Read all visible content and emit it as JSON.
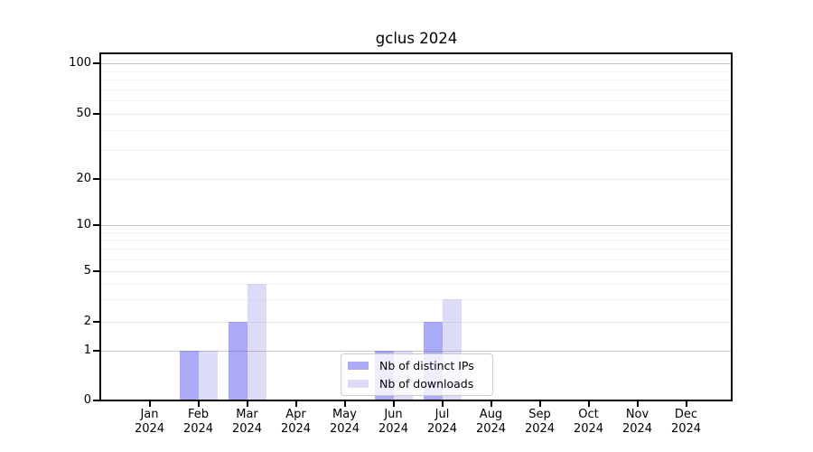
{
  "title": "gclus 2024",
  "chart_data": {
    "type": "bar",
    "title": "gclus 2024",
    "categories": [
      "Jan",
      "Feb",
      "Mar",
      "Apr",
      "May",
      "Jun",
      "Jul",
      "Aug",
      "Sep",
      "Oct",
      "Nov",
      "Dec"
    ],
    "category_year_line": "2024",
    "series": [
      {
        "name": "Nb of distinct IPs",
        "values": [
          0,
          1,
          2,
          0,
          0,
          1,
          2,
          0,
          0,
          0,
          0,
          0
        ],
        "legend_color": "#abaaf7",
        "bar_fill": "rgba(88,86,240,0.5)"
      },
      {
        "name": "Nb of downloads",
        "values": [
          0,
          1,
          4,
          0,
          0,
          1,
          3,
          0,
          0,
          0,
          0,
          0
        ],
        "legend_color": "#dcdcf8",
        "bar_fill": "rgba(110,110,232,0.24)"
      }
    ],
    "y_axis": {
      "scale": "log-like",
      "ylim": [
        0,
        100
      ],
      "tick_labels": [
        "0",
        "1",
        "2",
        "5",
        "10",
        "20",
        "50",
        "100"
      ],
      "major_ticks": [
        0,
        1,
        2,
        5,
        10,
        20,
        50,
        100
      ],
      "minor_gridline_values": [
        3,
        4,
        6,
        7,
        8,
        9,
        30,
        40,
        60,
        70,
        80,
        90
      ],
      "emphasized_gridline_values": [
        1,
        10,
        100
      ]
    },
    "xlabel": "",
    "ylabel": "",
    "grid": true,
    "legend_position": "lower-center",
    "colors": {
      "bar_distinct_ips": "#abaaf7",
      "bar_downloads": "#dcdcf8",
      "grid_minor": "#f3f3f3",
      "grid_major": "#eaeaea",
      "grid_power10": "#c9c9c9",
      "axis": "#000000",
      "legend_border": "#cccccc"
    }
  }
}
